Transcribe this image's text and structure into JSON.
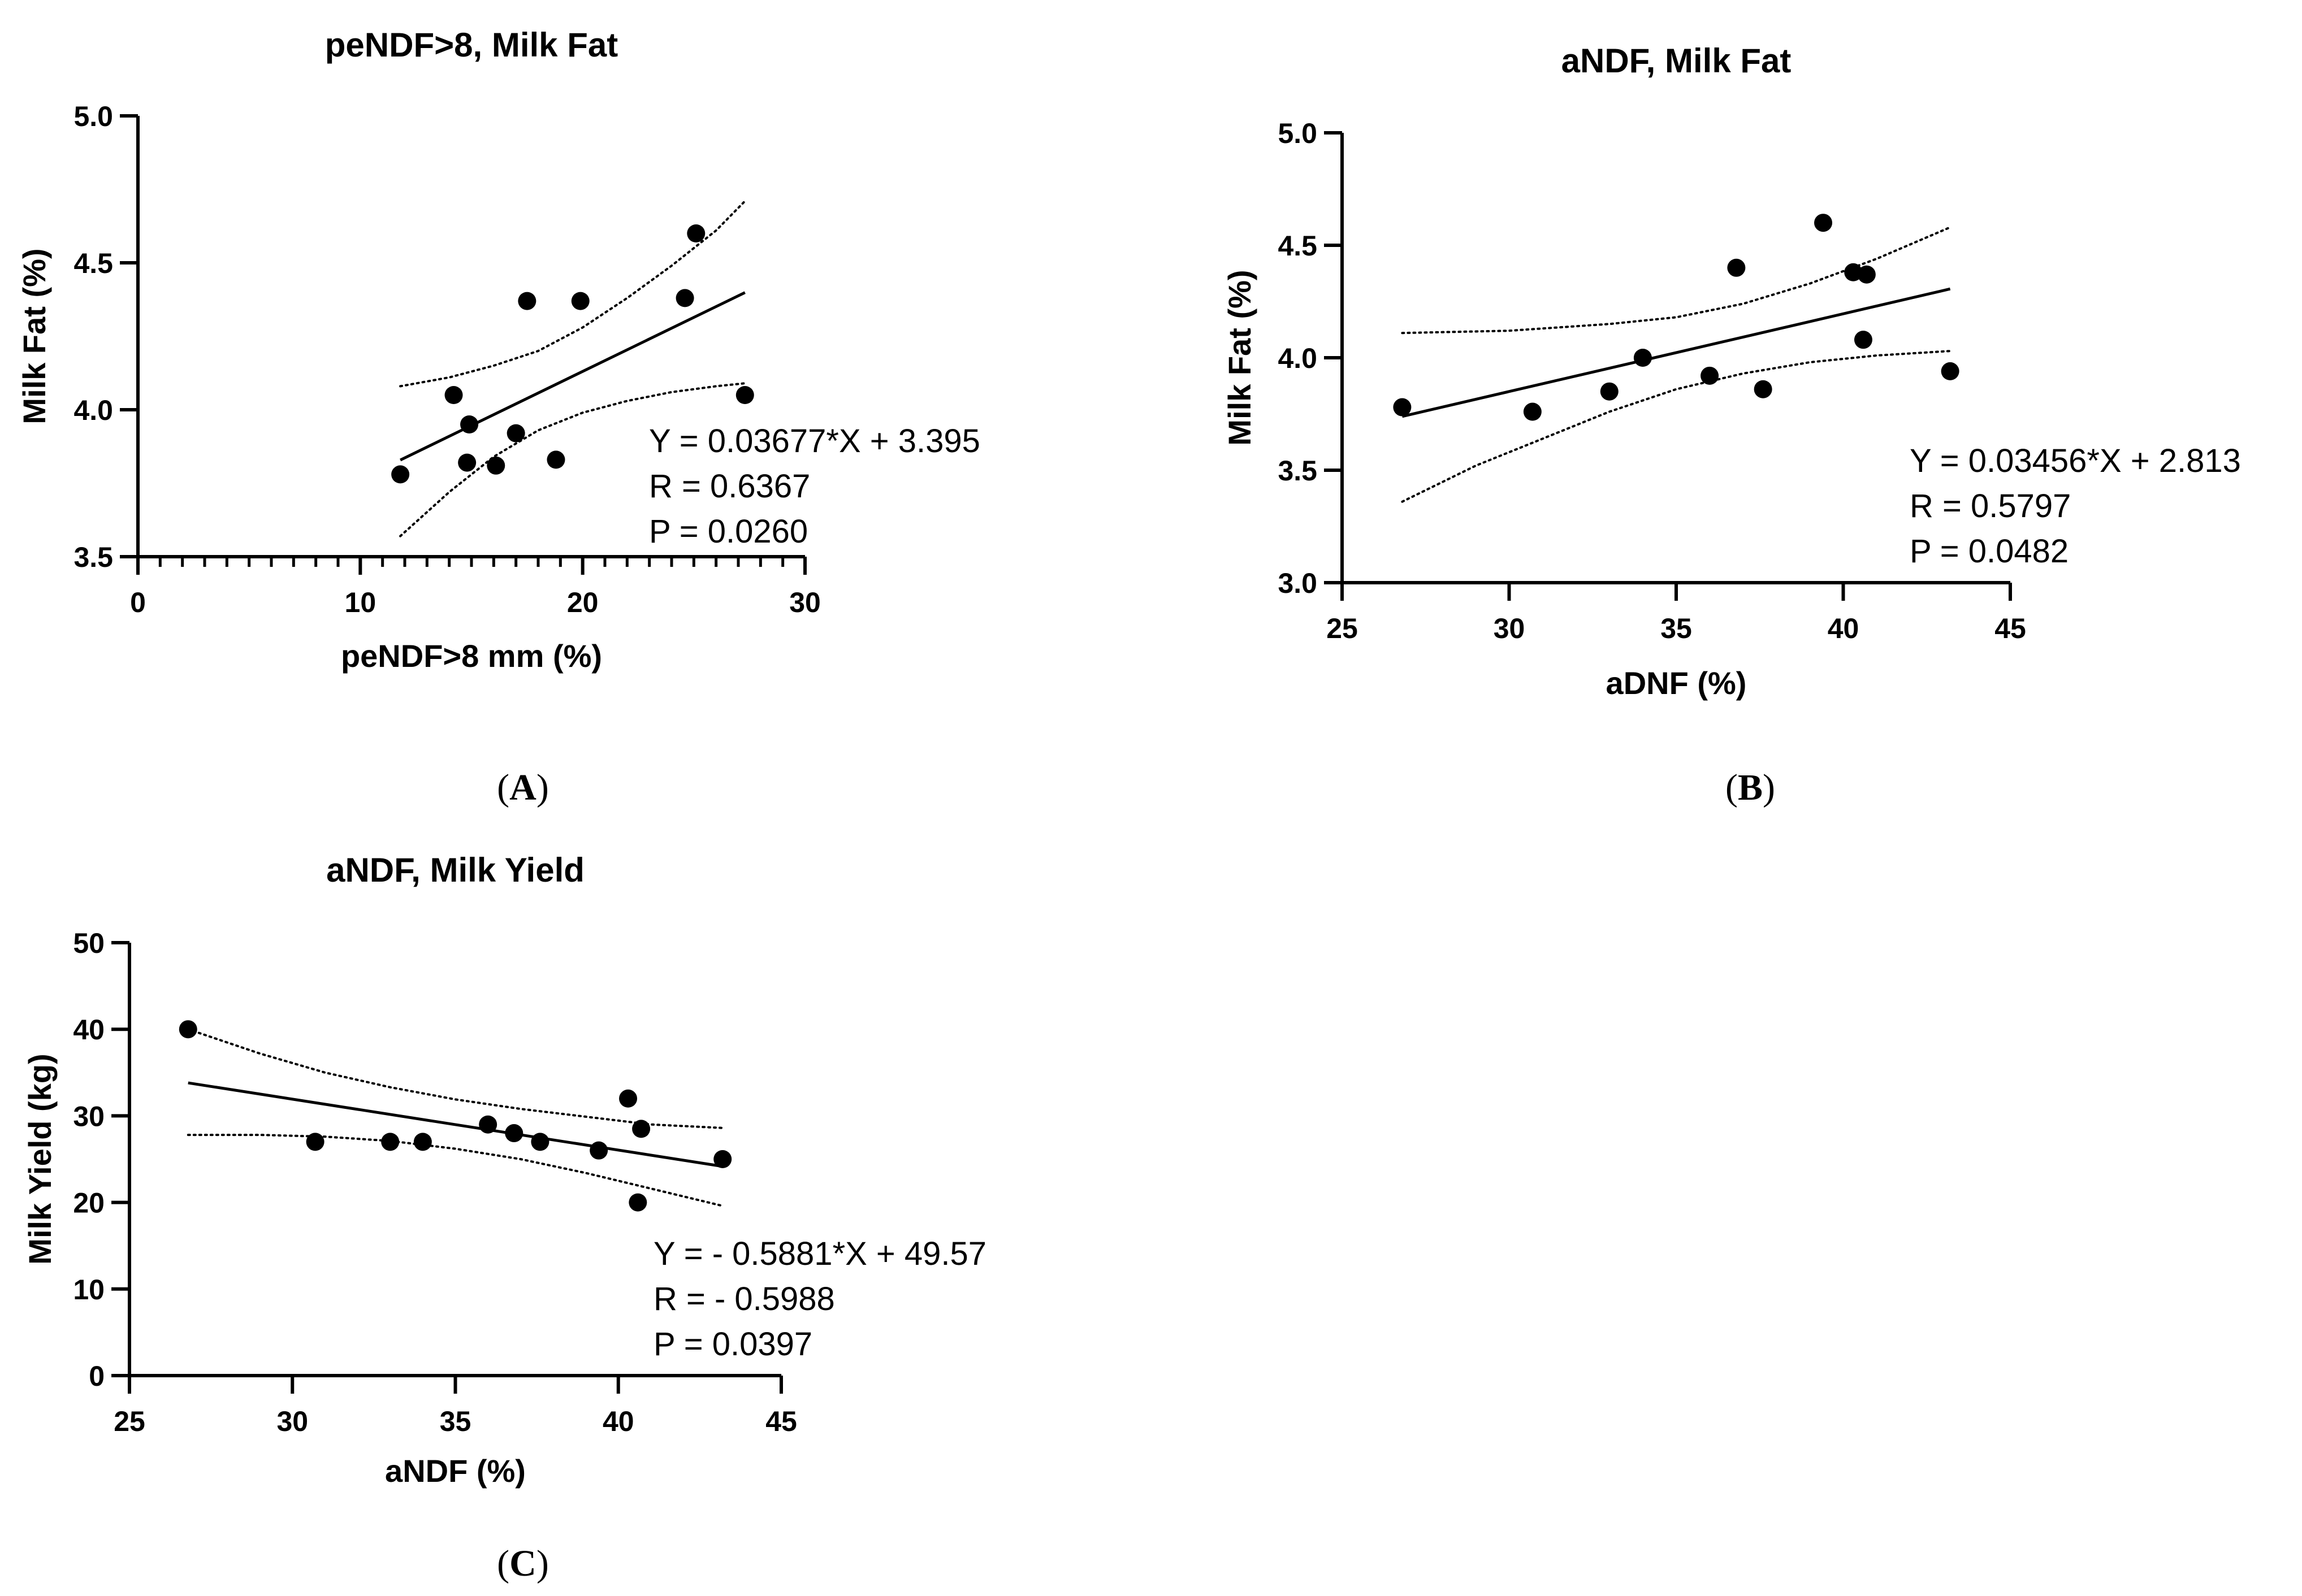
{
  "chart_data": [
    {
      "type": "scatter",
      "title": "peNDF>8, Milk Fat",
      "xlabel": "peNDF>8 mm (%)",
      "ylabel": "Milk Fat (%)",
      "xlim": [
        0,
        30
      ],
      "ylim": [
        3.5,
        5.0
      ],
      "xticks": [
        0,
        10,
        20,
        30
      ],
      "xtick_labels": [
        "0",
        "10",
        "20",
        "30"
      ],
      "yticks": [
        3.5,
        4.0,
        4.5,
        5.0
      ],
      "ytick_labels": [
        "3.5",
        "4.0",
        "4.5",
        "5.0"
      ],
      "x_minor_step": 1,
      "points": [
        {
          "x": 11.8,
          "y": 3.78
        },
        {
          "x": 14.2,
          "y": 4.05
        },
        {
          "x": 14.8,
          "y": 3.82
        },
        {
          "x": 14.9,
          "y": 3.95
        },
        {
          "x": 16.1,
          "y": 3.81
        },
        {
          "x": 17.0,
          "y": 3.92
        },
        {
          "x": 17.5,
          "y": 4.37
        },
        {
          "x": 18.8,
          "y": 3.83
        },
        {
          "x": 19.9,
          "y": 4.37
        },
        {
          "x": 24.6,
          "y": 4.38
        },
        {
          "x": 25.1,
          "y": 4.6
        },
        {
          "x": 27.3,
          "y": 4.05
        }
      ],
      "fit": {
        "slope": 0.03677,
        "intercept": 3.395,
        "x_range": [
          11.8,
          27.3
        ]
      },
      "ci_upper": [
        {
          "x": 11.8,
          "y": 4.08
        },
        {
          "x": 14,
          "y": 4.11
        },
        {
          "x": 16,
          "y": 4.15
        },
        {
          "x": 18,
          "y": 4.2
        },
        {
          "x": 20,
          "y": 4.28
        },
        {
          "x": 22,
          "y": 4.38
        },
        {
          "x": 24,
          "y": 4.49
        },
        {
          "x": 26,
          "y": 4.61
        },
        {
          "x": 27.3,
          "y": 4.71
        }
      ],
      "ci_lower": [
        {
          "x": 11.8,
          "y": 3.57
        },
        {
          "x": 14,
          "y": 3.72
        },
        {
          "x": 16,
          "y": 3.84
        },
        {
          "x": 18,
          "y": 3.93
        },
        {
          "x": 20,
          "y": 3.99
        },
        {
          "x": 22,
          "y": 4.03
        },
        {
          "x": 24,
          "y": 4.06
        },
        {
          "x": 26,
          "y": 4.08
        },
        {
          "x": 27.3,
          "y": 4.09
        }
      ],
      "annotation": [
        "Y = 0.03677*X + 3.395",
        "R = 0.6367",
        "P = 0.0260"
      ],
      "caption": "(A)",
      "caption_letter": "A"
    },
    {
      "type": "scatter",
      "title": "aNDF, Milk Fat",
      "xlabel": "aDNF (%)",
      "ylabel": "Milk Fat (%)",
      "xlim": [
        25,
        45
      ],
      "ylim": [
        3.0,
        5.0
      ],
      "xticks": [
        25,
        30,
        35,
        40,
        45
      ],
      "xtick_labels": [
        "25",
        "30",
        "35",
        "40",
        "45"
      ],
      "yticks": [
        3.0,
        3.5,
        4.0,
        4.5,
        5.0
      ],
      "ytick_labels": [
        "3.0",
        "3.5",
        "4.0",
        "4.5",
        "5.0"
      ],
      "points": [
        {
          "x": 26.8,
          "y": 3.78
        },
        {
          "x": 30.7,
          "y": 3.76
        },
        {
          "x": 33.0,
          "y": 3.85
        },
        {
          "x": 34.0,
          "y": 4.0
        },
        {
          "x": 36.0,
          "y": 3.92
        },
        {
          "x": 36.8,
          "y": 4.4
        },
        {
          "x": 37.6,
          "y": 3.86
        },
        {
          "x": 39.4,
          "y": 4.6
        },
        {
          "x": 40.3,
          "y": 4.38
        },
        {
          "x": 40.6,
          "y": 4.08
        },
        {
          "x": 40.7,
          "y": 4.37
        },
        {
          "x": 43.2,
          "y": 3.94
        }
      ],
      "fit": {
        "slope": 0.03456,
        "intercept": 2.813,
        "x_range": [
          26.8,
          43.2
        ]
      },
      "ci_upper": [
        {
          "x": 26.8,
          "y": 4.11
        },
        {
          "x": 30,
          "y": 4.12
        },
        {
          "x": 33,
          "y": 4.15
        },
        {
          "x": 35,
          "y": 4.18
        },
        {
          "x": 37,
          "y": 4.24
        },
        {
          "x": 39,
          "y": 4.33
        },
        {
          "x": 41,
          "y": 4.44
        },
        {
          "x": 43.2,
          "y": 4.58
        }
      ],
      "ci_lower": [
        {
          "x": 26.8,
          "y": 3.36
        },
        {
          "x": 29,
          "y": 3.52
        },
        {
          "x": 31,
          "y": 3.64
        },
        {
          "x": 33,
          "y": 3.76
        },
        {
          "x": 35,
          "y": 3.86
        },
        {
          "x": 37,
          "y": 3.93
        },
        {
          "x": 39,
          "y": 3.98
        },
        {
          "x": 41,
          "y": 4.01
        },
        {
          "x": 43.2,
          "y": 4.03
        }
      ],
      "annotation": [
        "Y = 0.03456*X + 2.813",
        "R = 0.5797",
        "P = 0.0482"
      ],
      "caption": "(B)",
      "caption_letter": "B"
    },
    {
      "type": "scatter",
      "title": "aNDF, Milk Yield",
      "xlabel": "aNDF (%)",
      "ylabel": "Milk Yield (kg)",
      "xlim": [
        25,
        45
      ],
      "ylim": [
        0,
        50
      ],
      "xticks": [
        25,
        30,
        35,
        40,
        45
      ],
      "xtick_labels": [
        "25",
        "30",
        "35",
        "40",
        "45"
      ],
      "yticks": [
        0,
        10,
        20,
        30,
        40,
        50
      ],
      "ytick_labels": [
        "0",
        "10",
        "20",
        "30",
        "40",
        "50"
      ],
      "points": [
        {
          "x": 26.8,
          "y": 40.0
        },
        {
          "x": 30.7,
          "y": 27.0
        },
        {
          "x": 33.0,
          "y": 27.0
        },
        {
          "x": 34.0,
          "y": 27.0
        },
        {
          "x": 36.0,
          "y": 29.0
        },
        {
          "x": 36.8,
          "y": 28.0
        },
        {
          "x": 37.6,
          "y": 27.0
        },
        {
          "x": 39.4,
          "y": 26.0
        },
        {
          "x": 40.3,
          "y": 32.0
        },
        {
          "x": 40.6,
          "y": 20.0
        },
        {
          "x": 40.7,
          "y": 28.5
        },
        {
          "x": 43.2,
          "y": 25.0
        }
      ],
      "fit": {
        "slope": -0.5881,
        "intercept": 49.57,
        "x_range": [
          26.8,
          43.2
        ]
      },
      "ci_upper": [
        {
          "x": 26.8,
          "y": 40.0
        },
        {
          "x": 29,
          "y": 37.2
        },
        {
          "x": 31,
          "y": 35.0
        },
        {
          "x": 33,
          "y": 33.3
        },
        {
          "x": 35,
          "y": 31.9
        },
        {
          "x": 37,
          "y": 30.8
        },
        {
          "x": 39,
          "y": 29.9
        },
        {
          "x": 41,
          "y": 29.0
        },
        {
          "x": 43.2,
          "y": 28.6
        }
      ],
      "ci_lower": [
        {
          "x": 26.8,
          "y": 27.8
        },
        {
          "x": 29,
          "y": 27.8
        },
        {
          "x": 31,
          "y": 27.6
        },
        {
          "x": 33,
          "y": 27.1
        },
        {
          "x": 35,
          "y": 26.2
        },
        {
          "x": 37,
          "y": 25.0
        },
        {
          "x": 39,
          "y": 23.4
        },
        {
          "x": 41,
          "y": 21.6
        },
        {
          "x": 43.2,
          "y": 19.6
        }
      ],
      "annotation": [
        "Y = - 0.5881*X + 49.57",
        "R = - 0.5988",
        "P = 0.0397"
      ],
      "caption": "(C)",
      "caption_letter": "C"
    }
  ]
}
